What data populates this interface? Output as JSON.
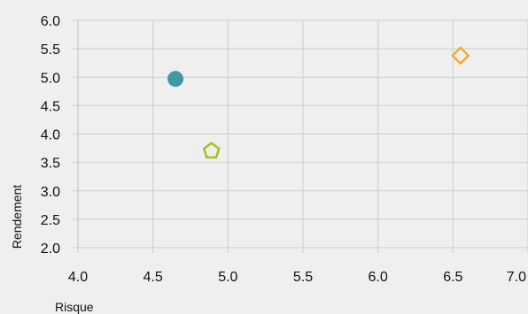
{
  "chart_data": {
    "type": "scatter",
    "title": "",
    "xlabel": "Risque",
    "ylabel": "Rendement",
    "xlim": [
      4.0,
      7.0
    ],
    "ylim": [
      2.0,
      6.0
    ],
    "x_ticks": [
      "4.0",
      "4.5",
      "5.0",
      "5.5",
      "6.0",
      "6.5",
      "7.0"
    ],
    "y_ticks": [
      "2.0",
      "2.5",
      "3.0",
      "3.5",
      "4.0",
      "4.5",
      "5.0",
      "5.5",
      "6.0"
    ],
    "x_tick_values": [
      4.0,
      4.5,
      5.0,
      5.5,
      6.0,
      6.5,
      7.0
    ],
    "y_tick_values": [
      2.0,
      2.5,
      3.0,
      3.5,
      4.0,
      4.5,
      5.0,
      5.5,
      6.0
    ],
    "grid": true,
    "legend": "none",
    "points": [
      {
        "x": 4.65,
        "y": 4.97,
        "marker": "circle",
        "color": "#3e9aa5"
      },
      {
        "x": 4.89,
        "y": 3.7,
        "marker": "pentagon",
        "color": "#a2c21d"
      },
      {
        "x": 6.55,
        "y": 5.38,
        "marker": "diamond",
        "color": "#f5a524"
      }
    ]
  }
}
